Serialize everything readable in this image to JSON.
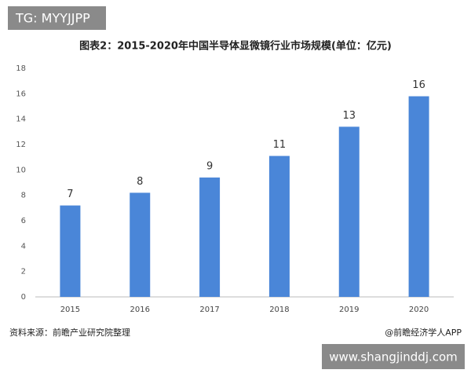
{
  "chart_data": {
    "type": "bar",
    "title": "图表2：2015-2020年中国半导体显微镜行业市场规模(单位：亿元)",
    "categories": [
      "2015",
      "2016",
      "2017",
      "2018",
      "2019",
      "2020"
    ],
    "values": [
      7.2,
      8.2,
      9.4,
      11.1,
      13.4,
      15.8
    ],
    "value_labels": [
      "7",
      "8",
      "9",
      "11",
      "13",
      "16"
    ],
    "color": "#4a86d8",
    "ylim": [
      0,
      18
    ],
    "yticks": [
      0,
      2,
      4,
      6,
      8,
      10,
      12,
      14,
      16,
      18
    ],
    "grid": false
  },
  "source": "资料来源：前瞻产业研究院整理",
  "credit": "@前瞻经济学人APP",
  "badge_top": "TG: MYYJJPP",
  "badge_bottom": "www.shangjinddj.com"
}
